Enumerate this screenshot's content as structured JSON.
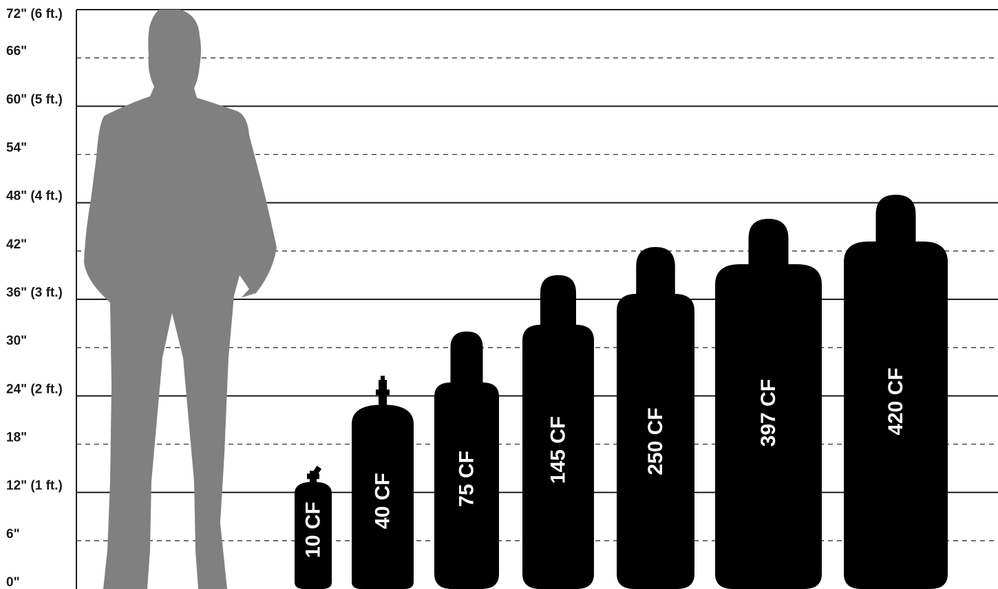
{
  "chart_data": {
    "type": "bar",
    "title": "",
    "unit": "inches",
    "ylim": [
      0,
      72
    ],
    "tick_labels": [
      {
        "value": 72,
        "label": "72\" (6 ft.)",
        "major": true
      },
      {
        "value": 66,
        "label": "66\"",
        "major": false
      },
      {
        "value": 60,
        "label": "60\" (5 ft.)",
        "major": true
      },
      {
        "value": 54,
        "label": "54\"",
        "major": false
      },
      {
        "value": 48,
        "label": "48\" (4 ft.)",
        "major": true
      },
      {
        "value": 42,
        "label": "42\"",
        "major": false
      },
      {
        "value": 36,
        "label": "36\" (3 ft.)",
        "major": true
      },
      {
        "value": 30,
        "label": "30\"",
        "major": false
      },
      {
        "value": 24,
        "label": "24\" (2 ft.)",
        "major": true
      },
      {
        "value": 18,
        "label": "18\"",
        "major": false
      },
      {
        "value": 12,
        "label": "12\" (1 ft.)",
        "major": true
      },
      {
        "value": 6,
        "label": "6\"",
        "major": false
      },
      {
        "value": 0,
        "label": "0\"",
        "major": false
      }
    ],
    "reference": {
      "figure": "human-silhouette",
      "height": 72
    },
    "categories": [
      "10 CF",
      "40 CF",
      "75 CF",
      "145 CF",
      "250 CF",
      "397 CF",
      "420 CF"
    ],
    "values": [
      15.2,
      26.5,
      32.0,
      39.0,
      42.5,
      46.0,
      49.0
    ],
    "colors": {
      "cylinder": "#000000",
      "person": "#808080",
      "major_line": "#1a1a1a",
      "minor_line": "#333333",
      "label_text": "#ffffff"
    }
  }
}
